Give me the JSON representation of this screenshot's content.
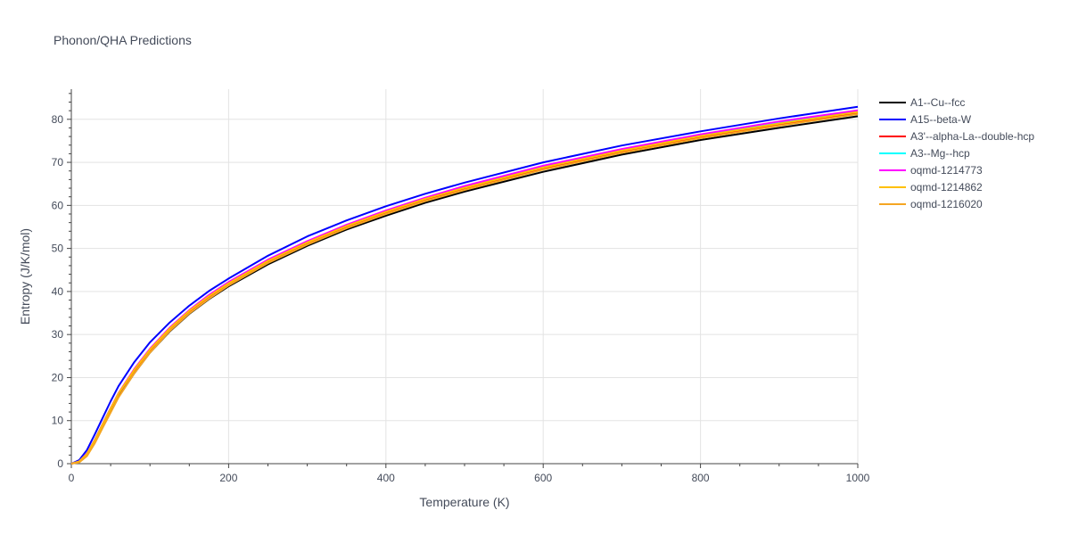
{
  "chart_data": {
    "type": "line",
    "title": "Phonon/QHA Predictions",
    "xlabel": "Temperature (K)",
    "ylabel": "Entropy (J/K/mol)",
    "xlim": [
      0,
      1000
    ],
    "ylim": [
      0,
      87
    ],
    "xticks": [
      0,
      200,
      400,
      600,
      800,
      1000
    ],
    "yticks": [
      0,
      10,
      20,
      30,
      40,
      50,
      60,
      70,
      80
    ],
    "grid": true,
    "legend_position": "top-right",
    "x": [
      0,
      10,
      20,
      30,
      40,
      50,
      60,
      80,
      100,
      125,
      150,
      175,
      200,
      250,
      300,
      350,
      400,
      450,
      500,
      600,
      700,
      800,
      900,
      1000
    ],
    "series": [
      {
        "name": "A1--Cu--fcc",
        "color": "#000000",
        "values": [
          0,
          0.4,
          2.0,
          5.0,
          8.6,
          12.1,
          15.5,
          21.0,
          25.8,
          30.7,
          34.8,
          38.2,
          41.2,
          46.3,
          50.6,
          54.4,
          57.6,
          60.6,
          63.2,
          67.8,
          71.8,
          75.2,
          78.0,
          80.7
        ]
      },
      {
        "name": "A15--beta-W",
        "color": "#0000ff",
        "values": [
          0,
          0.8,
          3.2,
          6.9,
          10.7,
          14.5,
          18.0,
          23.6,
          28.2,
          32.8,
          36.7,
          40.1,
          43.0,
          48.3,
          52.8,
          56.5,
          59.8,
          62.7,
          65.3,
          70.0,
          73.9,
          77.2,
          80.2,
          82.9
        ]
      },
      {
        "name": "A3'--alpha-La--double-hcp",
        "color": "#ff0000",
        "values": [
          0,
          0.5,
          2.3,
          5.5,
          9.2,
          12.8,
          16.2,
          21.7,
          26.4,
          31.3,
          35.4,
          38.8,
          41.8,
          46.9,
          51.2,
          55.0,
          58.3,
          61.3,
          63.9,
          68.6,
          72.5,
          75.9,
          78.8,
          81.5
        ]
      },
      {
        "name": "A3--Mg--hcp",
        "color": "#00ffff",
        "values": [
          0,
          0.5,
          2.4,
          5.6,
          9.3,
          12.9,
          16.3,
          21.9,
          26.6,
          31.5,
          35.6,
          39.0,
          42.0,
          47.2,
          51.5,
          55.3,
          58.6,
          61.6,
          64.2,
          68.9,
          72.8,
          76.2,
          79.1,
          81.8
        ]
      },
      {
        "name": "oqmd-1214773",
        "color": "#ff00ff",
        "values": [
          0,
          0.5,
          2.4,
          5.6,
          9.3,
          12.9,
          16.4,
          22.0,
          26.7,
          31.6,
          35.7,
          39.2,
          42.2,
          47.4,
          51.7,
          55.5,
          58.8,
          61.8,
          64.5,
          69.2,
          73.1,
          76.5,
          79.5,
          82.1
        ]
      },
      {
        "name": "oqmd-1214862",
        "color": "#ffc000",
        "values": [
          0,
          0.5,
          2.3,
          5.5,
          9.2,
          12.8,
          16.3,
          21.8,
          26.5,
          31.4,
          35.5,
          38.9,
          41.9,
          47.1,
          51.4,
          55.2,
          58.5,
          61.5,
          64.1,
          68.8,
          72.7,
          76.1,
          79.0,
          81.7
        ]
      },
      {
        "name": "oqmd-1216020",
        "color": "#f5a623",
        "values": [
          0,
          0.3,
          1.8,
          4.8,
          8.4,
          11.9,
          15.4,
          21.0,
          25.8,
          30.8,
          34.9,
          38.3,
          41.4,
          46.6,
          50.9,
          54.7,
          58.0,
          61.0,
          63.6,
          68.3,
          72.2,
          75.6,
          78.5,
          81.2
        ]
      }
    ]
  }
}
